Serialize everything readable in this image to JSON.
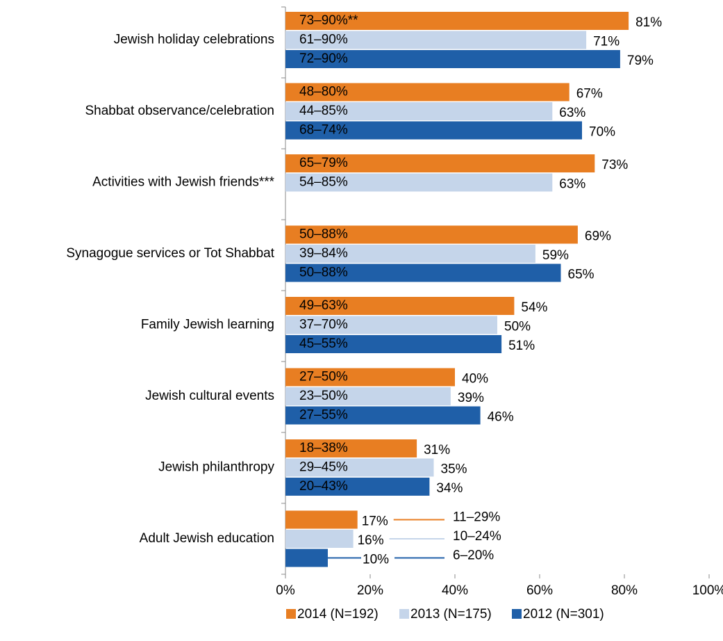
{
  "chart_data": {
    "type": "hbar",
    "categories": [
      "Jewish holiday celebrations",
      "Shabbat observance/celebration",
      "Activities with Jewish friends***",
      "Synagogue services or Tot Shabbat",
      "Family Jewish learning",
      "Jewish cultural events",
      "Jewish philanthropy",
      "Adult Jewish education"
    ],
    "series": [
      {
        "name": "2014 (N=192)",
        "color": "#E87E22",
        "values": [
          81,
          67,
          73,
          69,
          54,
          40,
          31,
          17
        ],
        "value_labels": [
          "81%",
          "67%",
          "73%",
          "69%",
          "54%",
          "40%",
          "31%",
          "17%"
        ],
        "range_labels": [
          "73–90%**",
          "48–80%",
          "65–79%",
          "50–88%",
          "49–63%",
          "27–50%",
          "18–38%",
          "11–29%"
        ]
      },
      {
        "name": "2013 (N=175)",
        "color": "#C5D5EA",
        "values": [
          71,
          63,
          63,
          59,
          50,
          39,
          35,
          16
        ],
        "value_labels": [
          "71%",
          "63%",
          "63%",
          "59%",
          "50%",
          "39%",
          "35%",
          "16%"
        ],
        "range_labels": [
          "61–90%",
          "44–85%",
          "54–85%",
          "39–84%",
          "37–70%",
          "23–50%",
          "29–45%",
          "10–24%"
        ]
      },
      {
        "name": "2012 (N=301)",
        "color": "#1F5FA8",
        "values": [
          79,
          70,
          null,
          65,
          51,
          46,
          34,
          10
        ],
        "value_labels": [
          "79%",
          "70%",
          null,
          "65%",
          "51%",
          "46%",
          "34%",
          "10%"
        ],
        "range_labels": [
          "72–90%",
          "68–74%",
          null,
          "50–88%",
          "45–55%",
          "27–55%",
          "20–43%",
          "6–20%"
        ]
      }
    ],
    "xlim": [
      0,
      100
    ],
    "xticks": [
      {
        "value": 0,
        "label": "0%"
      },
      {
        "value": 20,
        "label": "20%"
      },
      {
        "value": 40,
        "label": "40%"
      },
      {
        "value": 60,
        "label": "60%"
      },
      {
        "value": 80,
        "label": "80%"
      },
      {
        "value": 100,
        "label": "100%"
      }
    ],
    "legend": "bottom"
  }
}
